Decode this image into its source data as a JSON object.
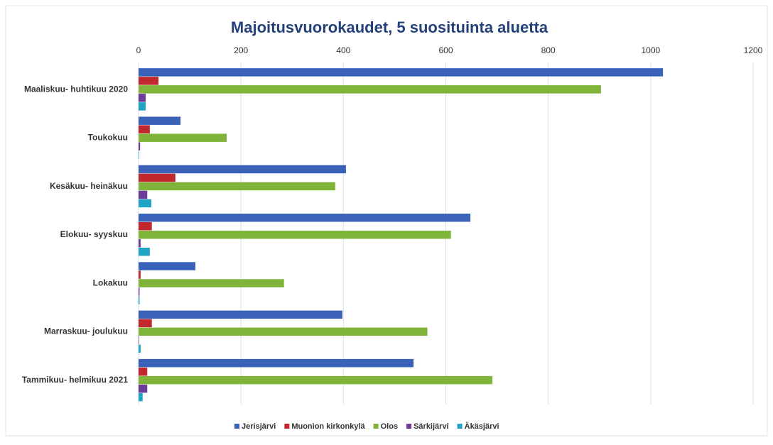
{
  "chart_data": {
    "type": "hbar",
    "title": "Majoitusvuorokaudet, 5 suosituinta aluetta",
    "categories": [
      "Maaliskuu- huhtikuu 2020",
      "Toukokuu",
      "Kesäkuu- heinäkuu",
      "Elokuu- syyskuu",
      "Lokakuu",
      "Marraskuu- joulukuu",
      "Tammikuu- helmikuu 2021"
    ],
    "series": [
      {
        "name": "Jerisjärvi",
        "color": "#3a62b8",
        "values": [
          1024,
          82,
          405,
          648,
          111,
          398,
          537
        ]
      },
      {
        "name": "Muonion kirkonkylä",
        "color": "#c0282e",
        "values": [
          39,
          22,
          72,
          26,
          4,
          26,
          17
        ]
      },
      {
        "name": "Olos",
        "color": "#7fb33a",
        "values": [
          903,
          172,
          384,
          610,
          284,
          564,
          691
        ]
      },
      {
        "name": "Särkijärvi",
        "color": "#6d3c99",
        "values": [
          14,
          3,
          17,
          4,
          2,
          1,
          17
        ]
      },
      {
        "name": "Äkäsjärvi",
        "color": "#1fa4c6",
        "values": [
          14,
          1,
          25,
          22,
          2,
          4,
          8
        ]
      }
    ],
    "xlim": [
      0,
      1200
    ],
    "xticks": [
      0,
      200,
      400,
      600,
      800,
      1000,
      1200
    ],
    "grid": true,
    "legend": "bottom"
  }
}
